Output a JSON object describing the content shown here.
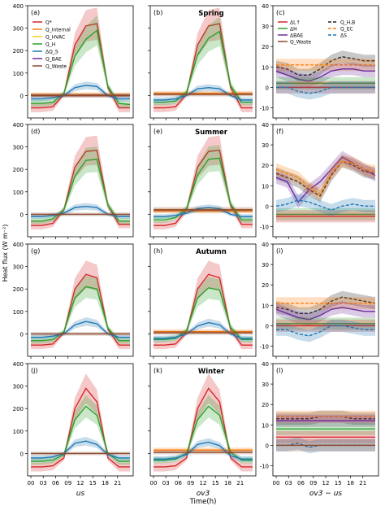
{
  "figure": {
    "ylabel": "Heat flux (W m⁻²)",
    "xlabel": "Time(h)",
    "column_labels": [
      "us",
      "ov3",
      "ov3 − us"
    ],
    "season_titles": [
      "Spring",
      "Summer",
      "Autumn",
      "Winter"
    ],
    "panel_letters": [
      "(a)",
      "(b)",
      "(c)",
      "(d)",
      "(e)",
      "(f)",
      "(g)",
      "(h)",
      "(i)",
      "(j)",
      "(k)",
      "(l)"
    ],
    "legend_a": [
      "Q*",
      "Q_Internal",
      "Q_HVAC",
      "Q_H",
      "ΔQ_S",
      "Q_BAE",
      "Q_Waste"
    ],
    "legend_c": [
      "ΔL↑",
      "ΔH",
      "ΔBAE",
      "Q_Waste",
      "Q_H,B",
      "Q_EC",
      "ΔS"
    ],
    "colors": {
      "qstar": "#d62728",
      "internal": "#ff7f0e",
      "hvac": "#f0d020",
      "qh": "#2ca02c",
      "dqs": "#1f77b4",
      "bae": "#6a2c9c",
      "waste": "#8c4a2f",
      "qhb": "#222222"
    }
  },
  "chart_data": [
    {
      "type": "line",
      "panel": "(a)",
      "xticks": [
        "00",
        "03",
        "06",
        "09",
        "12",
        "15",
        "18",
        "21"
      ],
      "ylim": [
        -100,
        400
      ],
      "yticks": [
        0,
        100,
        200,
        300,
        400
      ],
      "series": [
        {
          "name": "Q*",
          "values": [
            -55,
            -55,
            -50,
            5,
            225,
            310,
            320,
            35,
            -55,
            -55
          ]
        },
        {
          "name": "Q_Internal",
          "values": [
            5,
            5,
            5,
            5,
            5,
            5,
            5,
            5,
            5,
            5
          ]
        },
        {
          "name": "Q_HVAC",
          "values": [
            0,
            0,
            0,
            0,
            0,
            0,
            0,
            0,
            0,
            0
          ]
        },
        {
          "name": "Q_H",
          "values": [
            -35,
            -35,
            -30,
            10,
            175,
            250,
            290,
            40,
            -35,
            -40
          ]
        },
        {
          "name": "ΔQ_S",
          "values": [
            -15,
            -15,
            -10,
            0,
            35,
            45,
            40,
            0,
            -15,
            -15
          ]
        },
        {
          "name": "Q_BAE",
          "values": [
            0,
            0,
            0,
            0,
            0,
            0,
            0,
            0,
            0,
            0
          ]
        },
        {
          "name": "Q_Waste",
          "values": [
            0,
            0,
            0,
            0,
            0,
            0,
            0,
            0,
            0,
            0
          ]
        }
      ]
    },
    {
      "type": "line",
      "panel": "(b)",
      "title": "Spring",
      "xticks": [
        "00",
        "03",
        "06",
        "09",
        "12",
        "15",
        "18",
        "21"
      ],
      "series": [
        {
          "name": "Q*",
          "values": [
            -55,
            -55,
            -50,
            5,
            225,
            310,
            320,
            35,
            -55,
            -55
          ]
        },
        {
          "name": "Q_Internal",
          "values": [
            10,
            10,
            10,
            10,
            10,
            10,
            10,
            10,
            10,
            10
          ]
        },
        {
          "name": "Q_H",
          "values": [
            -30,
            -30,
            -25,
            15,
            180,
            255,
            285,
            45,
            -30,
            -30
          ]
        },
        {
          "name": "ΔQ_S",
          "values": [
            -20,
            -20,
            -15,
            0,
            30,
            35,
            30,
            0,
            -20,
            -20
          ]
        },
        {
          "name": "Q_Waste",
          "values": [
            5,
            5,
            5,
            5,
            5,
            5,
            5,
            5,
            5,
            5
          ]
        }
      ]
    },
    {
      "type": "line",
      "panel": "(c)",
      "xticks": [
        "00",
        "03",
        "06",
        "09",
        "12",
        "15",
        "18",
        "21"
      ],
      "ylim": [
        -15,
        40
      ],
      "yticks": [
        -10,
        0,
        10,
        20,
        30,
        40
      ],
      "series": [
        {
          "name": "Q_H,B",
          "values": [
            10,
            9,
            6,
            6,
            9,
            13,
            15,
            14,
            13,
            13
          ]
        },
        {
          "name": "Q_EC",
          "values": [
            11,
            11,
            11,
            11,
            11,
            11,
            11,
            11,
            11,
            11
          ]
        },
        {
          "name": "ΔBAE",
          "values": [
            8,
            6,
            4,
            3,
            5,
            8,
            9,
            9,
            8,
            8
          ]
        },
        {
          "name": "ΔH",
          "values": [
            2,
            2,
            2,
            2,
            2,
            2,
            2,
            2,
            2,
            2
          ]
        },
        {
          "name": "ΔL↑",
          "values": [
            0,
            0,
            0,
            0,
            0,
            0,
            0,
            0,
            0,
            0
          ]
        },
        {
          "name": "ΔS",
          "values": [
            0,
            0,
            -2,
            -3,
            -2,
            0,
            0,
            0,
            0,
            0
          ]
        }
      ]
    },
    {
      "type": "line",
      "panel": "(d)",
      "xticks": [
        "00",
        "03",
        "06",
        "09",
        "12",
        "15",
        "18",
        "21"
      ],
      "series": [
        {
          "name": "Q*",
          "values": [
            -50,
            -50,
            -40,
            20,
            210,
            280,
            285,
            40,
            -45,
            -45
          ]
        },
        {
          "name": "Q_H",
          "values": [
            -30,
            -30,
            -20,
            20,
            170,
            240,
            245,
            40,
            -30,
            -30
          ]
        },
        {
          "name": "ΔQ_S",
          "values": [
            -10,
            -10,
            -5,
            5,
            30,
            35,
            30,
            0,
            -10,
            -10
          ]
        },
        {
          "name": "Q_Waste",
          "values": [
            0,
            0,
            0,
            0,
            0,
            0,
            0,
            0,
            0,
            0
          ]
        }
      ]
    },
    {
      "type": "line",
      "panel": "(e)",
      "title": "Summer",
      "xticks": [
        "00",
        "03",
        "06",
        "09",
        "12",
        "15",
        "18",
        "21"
      ],
      "series": [
        {
          "name": "Q*",
          "values": [
            -50,
            -50,
            -40,
            20,
            210,
            280,
            285,
            40,
            -45,
            -45
          ]
        },
        {
          "name": "Q_Internal",
          "values": [
            15,
            15,
            15,
            15,
            15,
            15,
            15,
            15,
            15,
            15
          ]
        },
        {
          "name": "Q_H",
          "values": [
            -25,
            -25,
            -15,
            25,
            175,
            245,
            250,
            45,
            -25,
            -25
          ]
        },
        {
          "name": "ΔQ_S",
          "values": [
            -10,
            -10,
            -5,
            5,
            25,
            30,
            25,
            0,
            -10,
            -10
          ]
        },
        {
          "name": "Q_Waste",
          "values": [
            20,
            20,
            20,
            20,
            20,
            20,
            20,
            20,
            20,
            20
          ]
        }
      ]
    },
    {
      "type": "line",
      "panel": "(f)",
      "xticks": [
        "00",
        "03",
        "06",
        "09",
        "12",
        "15",
        "18",
        "21"
      ],
      "ylim": [
        -15,
        40
      ],
      "yticks": [
        -10,
        0,
        10,
        20,
        30,
        40
      ],
      "series": [
        {
          "name": "Q_H,B",
          "values": [
            16,
            14,
            12,
            8,
            5,
            15,
            22,
            20,
            17,
            16
          ]
        },
        {
          "name": "ΔBAE",
          "values": [
            14,
            12,
            2,
            8,
            12,
            18,
            24,
            21,
            18,
            15
          ]
        },
        {
          "name": "Q_EC",
          "values": [
            18,
            16,
            14,
            9,
            6,
            16,
            22,
            21,
            18,
            17
          ]
        },
        {
          "name": "ΔH",
          "values": [
            -4,
            -4,
            -4,
            -4,
            -4,
            -4,
            -4,
            -4,
            -4,
            -4
          ]
        },
        {
          "name": "ΔL↑",
          "values": [
            -5,
            -5,
            -5,
            -5,
            -5,
            -5,
            -5,
            -5,
            -5,
            -5
          ]
        },
        {
          "name": "ΔS",
          "values": [
            0,
            1,
            3,
            2,
            0,
            -2,
            0,
            1,
            0,
            0
          ]
        }
      ]
    },
    {
      "type": "line",
      "panel": "(g)",
      "xticks": [
        "00",
        "03",
        "06",
        "09",
        "12",
        "15",
        "18",
        "21"
      ],
      "series": [
        {
          "name": "Q*",
          "values": [
            -50,
            -50,
            -45,
            5,
            200,
            265,
            250,
            20,
            -50,
            -50
          ]
        },
        {
          "name": "Q_H",
          "values": [
            -30,
            -30,
            -25,
            10,
            160,
            210,
            200,
            25,
            -30,
            -30
          ]
        },
        {
          "name": "ΔQ_S",
          "values": [
            -15,
            -15,
            -10,
            0,
            40,
            55,
            45,
            0,
            -15,
            -15
          ]
        },
        {
          "name": "Q_Waste",
          "values": [
            0,
            0,
            0,
            0,
            0,
            0,
            0,
            0,
            0,
            0
          ]
        }
      ]
    },
    {
      "type": "line",
      "panel": "(h)",
      "title": "Autumn",
      "xticks": [
        "00",
        "03",
        "06",
        "09",
        "12",
        "15",
        "18",
        "21"
      ],
      "series": [
        {
          "name": "Q*",
          "values": [
            -50,
            -50,
            -45,
            5,
            200,
            265,
            250,
            20,
            -50,
            -50
          ]
        },
        {
          "name": "Q_Internal",
          "values": [
            10,
            10,
            10,
            10,
            10,
            10,
            10,
            10,
            10,
            10
          ]
        },
        {
          "name": "Q_H",
          "values": [
            -25,
            -25,
            -20,
            15,
            160,
            205,
            195,
            30,
            -25,
            -25
          ]
        },
        {
          "name": "ΔQ_S",
          "values": [
            -20,
            -20,
            -15,
            0,
            35,
            50,
            40,
            0,
            -20,
            -20
          ]
        },
        {
          "name": "Q_Waste",
          "values": [
            5,
            5,
            5,
            5,
            5,
            5,
            5,
            5,
            5,
            5
          ]
        }
      ]
    },
    {
      "type": "line",
      "panel": "(i)",
      "xticks": [
        "00",
        "03",
        "06",
        "09",
        "12",
        "15",
        "18",
        "21"
      ],
      "ylim": [
        -15,
        40
      ],
      "yticks": [
        -10,
        0,
        10,
        20,
        30,
        40
      ],
      "series": [
        {
          "name": "Q_H,B",
          "values": [
            9,
            8,
            6,
            6,
            8,
            12,
            14,
            13,
            12,
            11
          ]
        },
        {
          "name": "Q_EC",
          "values": [
            11,
            11,
            11,
            11,
            11,
            11,
            11,
            11,
            11,
            11
          ]
        },
        {
          "name": "ΔBAE",
          "values": [
            8,
            6,
            4,
            3,
            5,
            8,
            9,
            8,
            7,
            7
          ]
        },
        {
          "name": "ΔH",
          "values": [
            1,
            1,
            1,
            1,
            1,
            1,
            1,
            1,
            1,
            1
          ]
        },
        {
          "name": "ΔL↑",
          "values": [
            0,
            0,
            0,
            0,
            0,
            0,
            0,
            0,
            0,
            0
          ]
        },
        {
          "name": "ΔS",
          "values": [
            -2,
            -2,
            -4,
            -5,
            -3,
            0,
            0,
            -1,
            -2,
            -2
          ]
        }
      ]
    },
    {
      "type": "line",
      "panel": "(j)",
      "xticks": [
        "00",
        "03",
        "06",
        "09",
        "12",
        "15",
        "18",
        "21"
      ],
      "series": [
        {
          "name": "Q*",
          "values": [
            -60,
            -60,
            -55,
            -20,
            200,
            290,
            230,
            -20,
            -60,
            -60
          ]
        },
        {
          "name": "Q_H",
          "values": [
            -35,
            -35,
            -30,
            -5,
            150,
            210,
            170,
            0,
            -35,
            -35
          ]
        },
        {
          "name": "ΔQ_S",
          "values": [
            -20,
            -20,
            -15,
            0,
            45,
            55,
            40,
            -5,
            -20,
            -20
          ]
        },
        {
          "name": "Q_Waste",
          "values": [
            0,
            0,
            0,
            0,
            0,
            0,
            0,
            0,
            0,
            0
          ]
        }
      ]
    },
    {
      "type": "line",
      "panel": "(k)",
      "title": "Winter",
      "xticks": [
        "00",
        "03",
        "06",
        "09",
        "12",
        "15",
        "18",
        "21"
      ],
      "series": [
        {
          "name": "Q*",
          "values": [
            -60,
            -60,
            -55,
            -20,
            200,
            290,
            230,
            -20,
            -60,
            -60
          ]
        },
        {
          "name": "Q_Internal",
          "values": [
            15,
            15,
            15,
            15,
            15,
            15,
            15,
            15,
            15,
            15
          ]
        },
        {
          "name": "Q_H",
          "values": [
            -30,
            -30,
            -25,
            0,
            150,
            210,
            170,
            5,
            -30,
            -30
          ]
        },
        {
          "name": "ΔQ_S",
          "values": [
            -25,
            -25,
            -20,
            -5,
            40,
            50,
            35,
            -10,
            -25,
            -25
          ]
        },
        {
          "name": "Q_Waste",
          "values": [
            5,
            5,
            5,
            5,
            5,
            5,
            5,
            5,
            5,
            5
          ]
        }
      ]
    },
    {
      "type": "line",
      "panel": "(l)",
      "xticks": [
        "00",
        "03",
        "06",
        "09",
        "12",
        "15",
        "18",
        "21"
      ],
      "ylim": [
        -15,
        40
      ],
      "yticks": [
        -10,
        0,
        10,
        20,
        30,
        40
      ],
      "series": [
        {
          "name": "Q_H,B",
          "values": [
            13,
            13,
            13,
            13,
            14,
            14,
            14,
            13,
            13,
            13
          ]
        },
        {
          "name": "Q_EC",
          "values": [
            14,
            14,
            14,
            14,
            14,
            14,
            14,
            14,
            14,
            14
          ]
        },
        {
          "name": "ΔBAE",
          "values": [
            12,
            12,
            12,
            12,
            12,
            12,
            12,
            12,
            12,
            12
          ]
        },
        {
          "name": "ΔH",
          "values": [
            8,
            8,
            8,
            8,
            8,
            8,
            8,
            8,
            8,
            8
          ]
        },
        {
          "name": "ΔL↑",
          "values": [
            4,
            4,
            4,
            4,
            4,
            4,
            4,
            4,
            4,
            4
          ]
        },
        {
          "name": "ΔS",
          "values": [
            0,
            0,
            1,
            -1,
            0,
            0,
            0,
            0,
            0,
            0
          ]
        },
        {
          "name": "Q_Waste",
          "values": [
            0,
            0,
            0,
            0,
            0,
            0,
            0,
            0,
            0,
            0
          ]
        }
      ]
    }
  ]
}
